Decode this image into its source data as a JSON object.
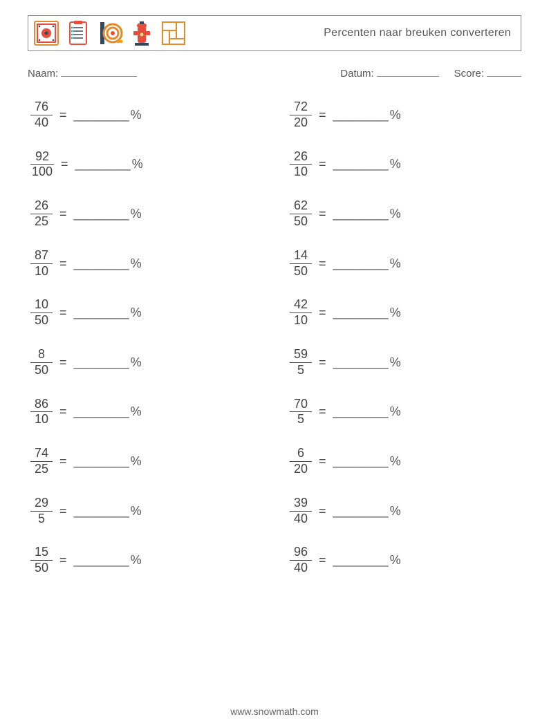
{
  "title": "Percenten naar breuken converteren",
  "labels": {
    "name": "Naam:",
    "date": "Datum:",
    "score": "Score:"
  },
  "equals": "=",
  "answer_blank": "________",
  "percent_symbol": "%",
  "footer": "www.snowmath.com",
  "colors": {
    "text": "#444444",
    "border": "#888888",
    "background": "#ffffff",
    "icon_red": "#e74c3c",
    "icon_orange": "#f39c12",
    "icon_teal": "#16a085",
    "icon_dark": "#34495e"
  },
  "problems_left": [
    {
      "num": "76",
      "den": "40"
    },
    {
      "num": "92",
      "den": "100"
    },
    {
      "num": "26",
      "den": "25"
    },
    {
      "num": "87",
      "den": "10"
    },
    {
      "num": "10",
      "den": "50"
    },
    {
      "num": "8",
      "den": "50"
    },
    {
      "num": "86",
      "den": "10"
    },
    {
      "num": "74",
      "den": "25"
    },
    {
      "num": "29",
      "den": "5"
    },
    {
      "num": "15",
      "den": "50"
    }
  ],
  "problems_right": [
    {
      "num": "72",
      "den": "20"
    },
    {
      "num": "26",
      "den": "10"
    },
    {
      "num": "62",
      "den": "50"
    },
    {
      "num": "14",
      "den": "50"
    },
    {
      "num": "42",
      "den": "10"
    },
    {
      "num": "59",
      "den": "5"
    },
    {
      "num": "70",
      "den": "5"
    },
    {
      "num": "6",
      "den": "20"
    },
    {
      "num": "39",
      "den": "40"
    },
    {
      "num": "96",
      "den": "40"
    }
  ]
}
